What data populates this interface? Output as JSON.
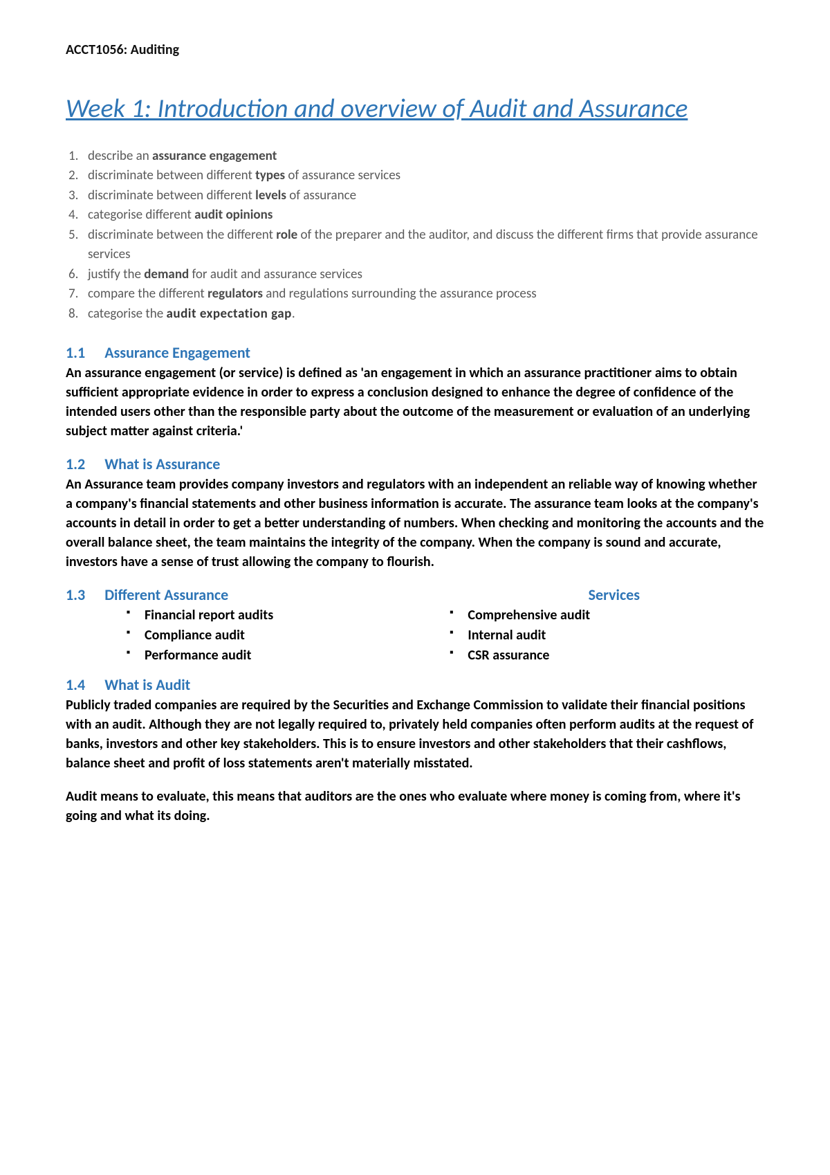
{
  "colors": {
    "heading_blue": "#2e75b6",
    "body_black": "#000000",
    "list_gray": "#5a5a5a",
    "background": "#ffffff"
  },
  "typography": {
    "header_fontsize": 20,
    "title_fontsize": 38,
    "section_head_fontsize": 22,
    "body_fontsize": 20,
    "list_fontsize": 19
  },
  "header": "ACCT1056: Auditing",
  "title": "Week 1: Introduction and overview of Audit and Assurance",
  "objectives": [
    {
      "pre": "describe an ",
      "bold": "assurance engagement",
      "post": ""
    },
    {
      "pre": "discriminate between different ",
      "bold": "types",
      "post": " of assurance services"
    },
    {
      "pre": "discriminate between different ",
      "bold": "levels",
      "post": " of assurance"
    },
    {
      "pre": "categorise different ",
      "bold": "audit opinions",
      "post": ""
    },
    {
      "pre": "discriminate between the different ",
      "bold": "role",
      "post": " of the preparer and the auditor, and discuss the different firms that provide assurance services"
    },
    {
      "pre": "justify the ",
      "bold": "demand",
      "post": " for audit and assurance services"
    },
    {
      "pre": "compare the different ",
      "bold": "regulators",
      "post": " and regulations surrounding the assurance process"
    },
    {
      "pre": "categorise the ",
      "bold": "audit expectation gap",
      "post": "."
    }
  ],
  "section_1_1": {
    "num": "1.1",
    "title": "Assurance Engagement",
    "text": "An assurance engagement (or service) is defined as 'an engagement in which an assurance practitioner aims to obtain sufficient appropriate evidence in order to express a conclusion designed to enhance the degree of confidence of the intended users other than the responsible party about the outcome of the measurement or evaluation of an underlying subject matter against criteria.'"
  },
  "section_1_2": {
    "num": "1.2",
    "title": "What is Assurance",
    "text": "An Assurance team provides company investors and regulators with an independent an reliable way of knowing whether a company's financial statements and other business information is accurate. The assurance team looks at the company's accounts in detail in order to get a better understanding of numbers. When checking and monitoring the accounts and the overall balance sheet, the team maintains the integrity of the company. When the company is sound and accurate, investors have a sense of trust allowing the company to flourish."
  },
  "section_1_3": {
    "num": "1.3",
    "title": "Different Assurance",
    "trailing": "Services",
    "left_items": [
      "Financial report audits",
      "Compliance audit",
      "Performance audit"
    ],
    "right_items": [
      "Comprehensive audit",
      "Internal audit",
      "CSR assurance"
    ]
  },
  "section_1_4": {
    "num": "1.4",
    "title": "What is Audit",
    "para1": "Publicly traded companies are required by the Securities and Exchange Commission to validate their financial positions with an audit. Although they are not legally required to, privately held companies often perform audits at the request of banks, investors and other key stakeholders. This is to ensure investors and other stakeholders that their cashflows, balance sheet and profit of loss statements aren't materially misstated.",
    "para2": "Audit means to evaluate, this means that auditors are the ones who evaluate where money is coming from, where it's going and what its doing."
  }
}
